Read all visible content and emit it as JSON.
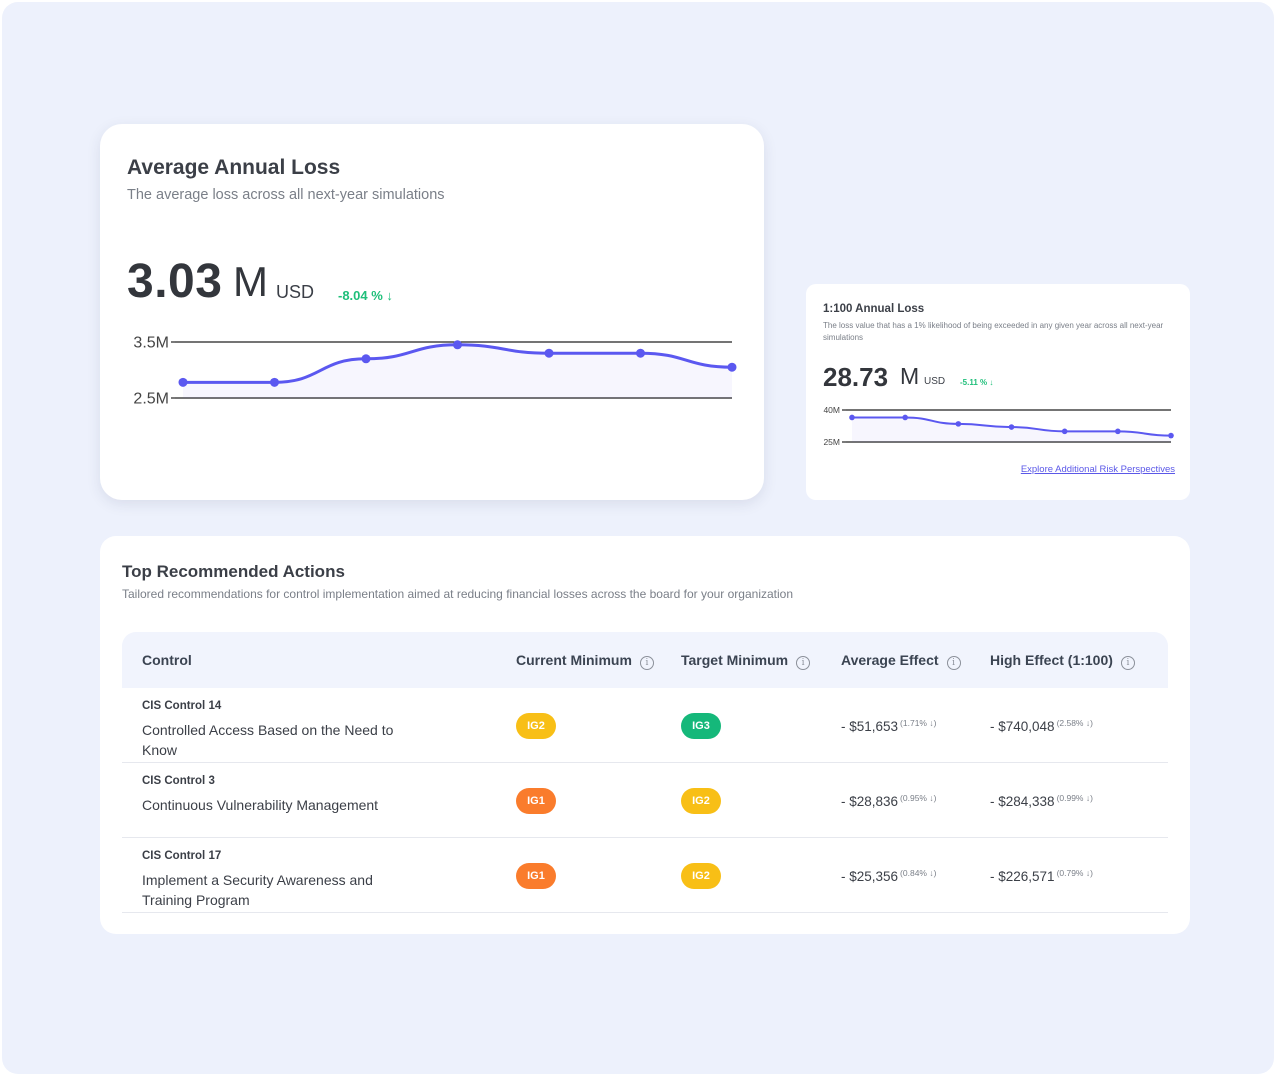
{
  "average_annual_loss": {
    "title": "Average Annual Loss",
    "subtitle": "The average loss across all next-year simulations",
    "value": "3.03",
    "unit": "M",
    "currency": "USD",
    "delta": "-8.04 % ↓",
    "chart_data": {
      "type": "line",
      "x": [
        1,
        2,
        3,
        4,
        5,
        6,
        7
      ],
      "values": [
        2.78,
        2.78,
        3.2,
        3.45,
        3.3,
        3.3,
        3.05
      ],
      "tick_labels": [
        "3.5M",
        "2.5M"
      ],
      "ylim": [
        2.5,
        3.5
      ],
      "color": "#5b58f0"
    }
  },
  "annual_loss_1_100": {
    "title": "1:100 Annual Loss",
    "subtitle": "The loss value that has a 1% likelihood of being exceeded in any given year across all next-year simulations",
    "value": "28.73",
    "unit": "M",
    "currency": "USD",
    "delta": "-5.11 % ↓",
    "link": "Explore Additional Risk Perspectives",
    "chart_data": {
      "type": "line",
      "x": [
        1,
        2,
        3,
        4,
        5,
        6,
        7
      ],
      "values": [
        36.5,
        36.5,
        33.5,
        32.0,
        30.0,
        30.0,
        28.0
      ],
      "tick_labels": [
        "40M",
        "25M"
      ],
      "ylim": [
        25,
        40
      ],
      "color": "#5b58f0"
    }
  },
  "recommended_actions": {
    "title": "Top Recommended Actions",
    "subtitle": "Tailored recommendations for control implementation aimed at reducing financial losses across the board for your organization",
    "columns": {
      "control": "Control",
      "current_minimum": "Current Minimum",
      "target_minimum": "Target Minimum",
      "average_effect": "Average Effect",
      "high_effect": "High Effect (1:100)"
    },
    "info_glyph": "i",
    "rows": [
      {
        "cis": "CIS Control 14",
        "name": "Controlled Access Based on the Need to Know",
        "current": "IG2",
        "target": "IG3",
        "avg_effect": "- $51,653",
        "avg_pct": "(1.71% ↓)",
        "high_effect": "- $740,048",
        "high_pct": "(2.58% ↓)"
      },
      {
        "cis": "CIS Control 3",
        "name": "Continuous Vulnerability Management",
        "current": "IG1",
        "target": "IG2",
        "avg_effect": "- $28,836",
        "avg_pct": "(0.95% ↓)",
        "high_effect": "- $284,338",
        "high_pct": "(0.99% ↓)"
      },
      {
        "cis": "CIS Control 17",
        "name": "Implement a Security Awareness and Training Program",
        "current": "IG1",
        "target": "IG2",
        "avg_effect": "- $25,356",
        "avg_pct": "(0.84% ↓)",
        "high_effect": "- $226,571",
        "high_pct": "(0.79% ↓)"
      }
    ]
  }
}
